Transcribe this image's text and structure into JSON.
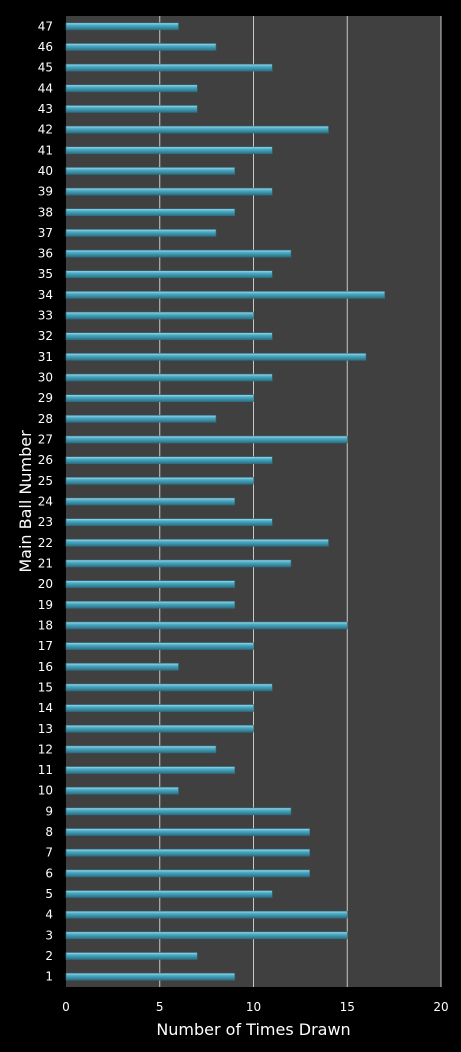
{
  "chart_data": {
    "type": "bar",
    "orientation": "horizontal",
    "title": "",
    "xlabel": "Number of Times Drawn",
    "ylabel": "Main Ball Number",
    "xlim": [
      0,
      20
    ],
    "xticks": [
      0,
      5,
      10,
      15,
      20
    ],
    "grid": true,
    "legend": "none",
    "categories": [
      "1",
      "2",
      "3",
      "4",
      "5",
      "6",
      "7",
      "8",
      "9",
      "10",
      "11",
      "12",
      "13",
      "14",
      "15",
      "16",
      "17",
      "18",
      "19",
      "20",
      "21",
      "22",
      "23",
      "24",
      "25",
      "26",
      "27",
      "28",
      "29",
      "30",
      "31",
      "32",
      "33",
      "34",
      "35",
      "36",
      "37",
      "38",
      "39",
      "40",
      "41",
      "42",
      "43",
      "44",
      "45",
      "46",
      "47"
    ],
    "values": [
      9,
      7,
      15,
      15,
      11,
      13,
      13,
      13,
      12,
      6,
      9,
      8,
      10,
      10,
      11,
      6,
      10,
      15,
      9,
      9,
      12,
      14,
      11,
      9,
      10,
      11,
      15,
      8,
      10,
      11,
      16,
      11,
      10,
      17,
      11,
      12,
      8,
      9,
      11,
      9,
      11,
      14,
      7,
      7,
      11,
      8,
      6
    ]
  },
  "colors": {
    "background": "#000000",
    "plot_area": "#404040",
    "gridline": "#c8c8c8",
    "bar_fill": "#4bacc6",
    "bar_highlight": "#a5dbea",
    "bar_shadow": "#2b6f82",
    "text": "#ffffff"
  }
}
